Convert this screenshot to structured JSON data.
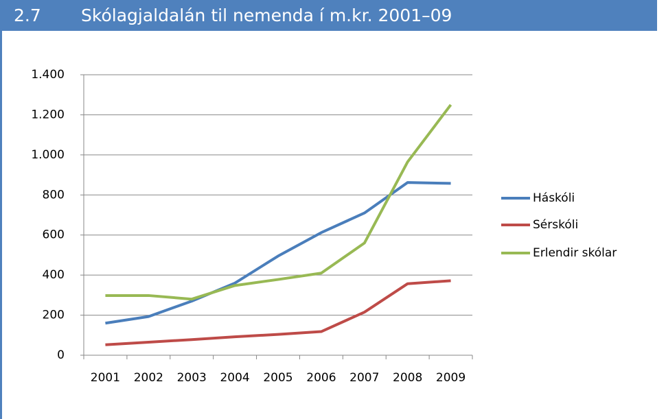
{
  "header": {
    "number": "2.7"
  },
  "chart_data": {
    "type": "line",
    "title": "Skólagjaldalán til nemenda í m.kr. 2001–09",
    "categories": [
      "2001",
      "2002",
      "2003",
      "2004",
      "2005",
      "2006",
      "2007",
      "2008",
      "2009"
    ],
    "series": [
      {
        "name": "Háskóli",
        "color": "#4a7ebb",
        "values": [
          160,
          193,
          270,
          360,
          495,
          612,
          710,
          862,
          858
        ]
      },
      {
        "name": "Sérskóli",
        "color": "#be4b48",
        "values": [
          52,
          65,
          78,
          92,
          104,
          118,
          215,
          357,
          372
        ]
      },
      {
        "name": "Erlendir skólar",
        "color": "#98b954",
        "values": [
          298,
          298,
          280,
          348,
          378,
          410,
          560,
          965,
          1250
        ]
      }
    ],
    "ylim": [
      0,
      1400
    ],
    "yticks": [
      0,
      200,
      400,
      600,
      800,
      {
        "value": 1000,
        "label": "1.000"
      },
      {
        "value": 1200,
        "label": "1.200"
      },
      {
        "value": 1400,
        "label": "1.400"
      }
    ],
    "grid": true,
    "legend": "right"
  }
}
